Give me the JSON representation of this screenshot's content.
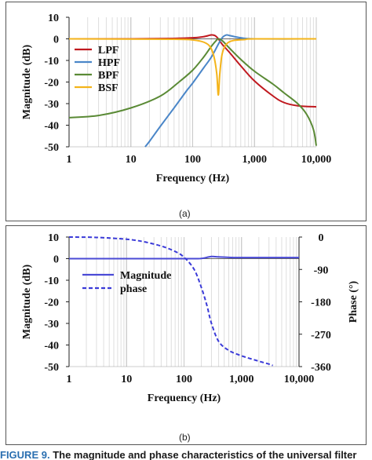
{
  "panels": {
    "a": {
      "label": "(a)"
    },
    "b": {
      "label": "(b)"
    }
  },
  "caption": {
    "figure_label": "FIGURE 9.",
    "text": "The magnitude and phase characteristics of the universal filter"
  },
  "chart_data": [
    {
      "type": "line",
      "panel": "a",
      "xlabel": "Frequency (Hz)",
      "ylabel": "Magnitude (dB)",
      "xscale": "log",
      "xlim": [
        1,
        10000
      ],
      "ylim": [
        -50,
        10
      ],
      "x_ticks": [
        "1",
        "10",
        "100",
        "1,000",
        "10,000"
      ],
      "y_ticks": [
        "10",
        "0",
        "-10",
        "-20",
        "-30",
        "-40",
        "-50"
      ],
      "grid": "vertical minor log gridlines",
      "legend_position": "center-left",
      "series": [
        {
          "name": "LPF",
          "color": "#c0191f",
          "x": [
            1,
            10,
            50,
            100,
            150,
            200,
            230,
            260,
            300,
            400,
            600,
            1000,
            2000,
            3000,
            5000,
            10000
          ],
          "y": [
            0,
            0,
            0.2,
            0.5,
            1.0,
            1.8,
            1.5,
            0,
            -2.5,
            -6.5,
            -12.5,
            -19.5,
            -26.5,
            -29.5,
            -31,
            -31.5
          ]
        },
        {
          "name": "HPF",
          "color": "#4a86c8",
          "x": [
            17,
            20,
            30,
            50,
            80,
            100,
            150,
            200,
            260,
            300,
            350,
            400,
            600,
            1000,
            10000
          ],
          "y": [
            -50,
            -47.5,
            -40.5,
            -32,
            -24,
            -20.5,
            -13.5,
            -8.5,
            -2.5,
            0.5,
            1.8,
            1.5,
            0.5,
            0,
            0
          ]
        },
        {
          "name": "BPF",
          "color": "#5a8a35",
          "x": [
            1,
            3,
            10,
            30,
            60,
            100,
            150,
            200,
            240,
            260,
            300,
            400,
            600,
            1000,
            2000,
            3000,
            5000,
            7000,
            9000,
            10000
          ],
          "y": [
            -36.5,
            -35.5,
            -32,
            -26.5,
            -20,
            -14.5,
            -8.5,
            -3.5,
            -0.8,
            0,
            -0.8,
            -4.5,
            -9.5,
            -15,
            -21,
            -25,
            -30,
            -35,
            -42,
            -49.5
          ]
        },
        {
          "name": "BSF",
          "color": "#f4b41a",
          "x": [
            1,
            50,
            100,
            150,
            190,
            220,
            245,
            260,
            275,
            300,
            350,
            450,
            700,
            1000,
            10000
          ],
          "y": [
            0,
            -0.2,
            -0.5,
            -1.5,
            -3.5,
            -8,
            -16,
            -26,
            -16,
            -7,
            -2.5,
            -0.8,
            -0.3,
            0,
            0
          ]
        }
      ]
    },
    {
      "type": "line",
      "panel": "b",
      "xlabel": "Frequency (Hz)",
      "ylabel": "Magnitude (dB)",
      "y2label": "Phase (°)",
      "xscale": "log",
      "xlim": [
        1,
        10000
      ],
      "ylim": [
        -50,
        10
      ],
      "y2lim": [
        -360,
        0
      ],
      "x_ticks": [
        "1",
        "10",
        "100",
        "1,000",
        "10,000"
      ],
      "y_ticks": [
        "10",
        "0",
        "-10",
        "-20",
        "-30",
        "-40",
        "-50"
      ],
      "y2_ticks": [
        "0",
        "-90",
        "-180",
        "-270",
        "-360"
      ],
      "grid": "vertical minor log gridlines",
      "legend_position": "center-left",
      "series": [
        {
          "name": "Magnitude",
          "color": "#4a4ad6",
          "style": "solid",
          "axis": "left",
          "x": [
            1,
            100,
            200,
            250,
            300,
            350,
            400,
            600,
            1000,
            10000
          ],
          "y": [
            0,
            0,
            0.1,
            0.6,
            1.0,
            0.9,
            0.8,
            0.6,
            0.5,
            0.5
          ]
        },
        {
          "name": "phase",
          "color": "#3a3ad8",
          "style": "dashed",
          "axis": "right",
          "x": [
            1,
            3,
            10,
            20,
            40,
            70,
            100,
            150,
            200,
            250,
            300,
            400,
            600,
            1000,
            2000,
            3000,
            3500
          ],
          "y": [
            0,
            -1,
            -6,
            -13,
            -25,
            -40,
            -56,
            -90,
            -140,
            -190,
            -240,
            -290,
            -315,
            -330,
            -345,
            -353,
            -357
          ]
        }
      ]
    }
  ]
}
